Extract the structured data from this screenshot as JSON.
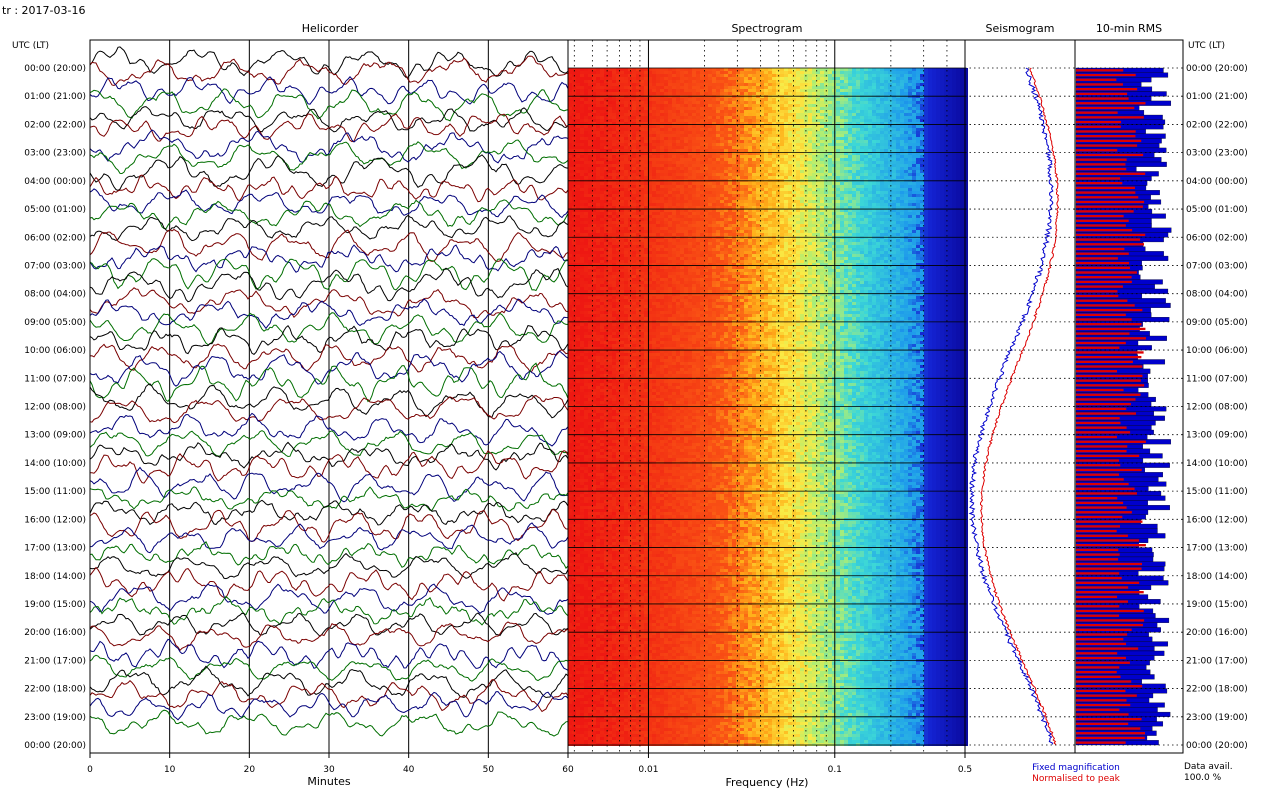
{
  "header": {
    "station_date": "tr : 2017-03-16"
  },
  "panels": {
    "helicorder": "Helicorder",
    "spectrogram": "Spectrogram",
    "seismogram": "Seismogram",
    "rms": "10-min RMS"
  },
  "axis_labels": {
    "time_zone_left": "UTC (LT)",
    "time_zone_right": "UTC (LT)",
    "minutes": "Minutes",
    "frequency": "Frequency (Hz)"
  },
  "legend": {
    "fixed": "Fixed magnification",
    "normalised": "Normalised to peak",
    "fixed_color": "#0000cc",
    "normalised_color": "#dd0000"
  },
  "availability": {
    "label": "Data avail.",
    "value": "100.0 %"
  },
  "chart_data": [
    {
      "type": "line",
      "title": "Helicorder",
      "xlabel": "Minutes",
      "x_ticks": [
        "0",
        "10",
        "20",
        "30",
        "40",
        "50",
        "60"
      ],
      "xlim": [
        0,
        60
      ],
      "hour_labels": [
        "00:00 (20:00)",
        "01:00 (21:00)",
        "02:00 (22:00)",
        "03:00 (23:00)",
        "04:00 (00:00)",
        "05:00 (01:00)",
        "06:00 (02:00)",
        "07:00 (03:00)",
        "08:00 (04:00)",
        "09:00 (05:00)",
        "10:00 (06:00)",
        "11:00 (07:00)",
        "12:00 (08:00)",
        "13:00 (09:00)",
        "14:00 (10:00)",
        "15:00 (11:00)",
        "16:00 (12:00)",
        "17:00 (13:00)",
        "18:00 (14:00)",
        "19:00 (15:00)",
        "20:00 (16:00)",
        "21:00 (17:00)",
        "22:00 (18:00)",
        "23:00 (19:00)",
        "00:00 (20:00)"
      ],
      "trace_colors": [
        "#000000",
        "#7a0000",
        "#00007a",
        "#006e00"
      ]
    },
    {
      "type": "heatmap",
      "title": "Spectrogram",
      "xlabel": "Frequency (Hz)",
      "x_scale": "log",
      "xlim": [
        0.0037,
        0.5
      ],
      "x_ticks": [
        "0.01",
        "0.1",
        "0.5"
      ]
    },
    {
      "type": "line",
      "title": "Seismogram",
      "series": [
        {
          "name": "Fixed magnification",
          "color": "#0000cc"
        },
        {
          "name": "Normalised to peak",
          "color": "#dd0000"
        }
      ]
    },
    {
      "type": "bar",
      "title": "10-min RMS",
      "series": [
        {
          "name": "Fixed magnification",
          "color": "#0000cc"
        },
        {
          "name": "Normalised to peak",
          "color": "#dd0000"
        }
      ]
    }
  ]
}
